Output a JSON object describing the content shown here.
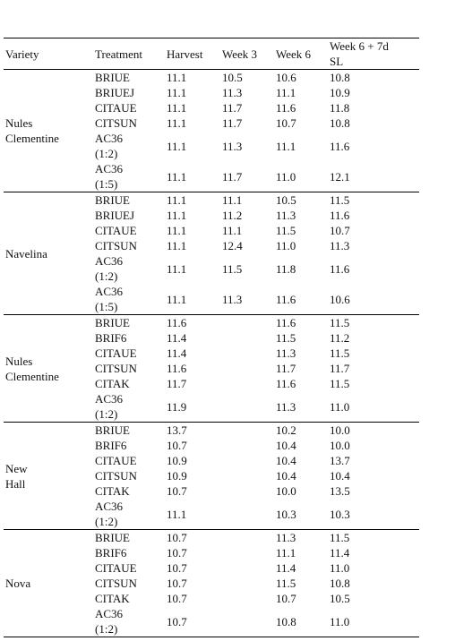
{
  "table": {
    "headers": [
      "Variety",
      "Treatment",
      "Harvest",
      "Week 3",
      "Week 6",
      "Week 6 + 7d SL"
    ],
    "groups": [
      {
        "variety": "Nules Clementine",
        "rows": [
          [
            "BRIUE",
            "11.1",
            "10.5",
            "10.6",
            "10.8"
          ],
          [
            "BRIUEJ",
            "11.1",
            "11.3",
            "11.1",
            "10.9"
          ],
          [
            "CITAUE",
            "11.1",
            "11.7",
            "11.6",
            "11.8"
          ],
          [
            "CITSUN",
            "11.1",
            "11.7",
            "10.7",
            "10.8"
          ],
          [
            "AC36 (1:2)",
            "11.1",
            "11.3",
            "11.1",
            "11.6"
          ],
          [
            "AC36 (1:5)",
            "11.1",
            "11.7",
            "11.0",
            "12.1"
          ]
        ]
      },
      {
        "variety": "Navelina",
        "rows": [
          [
            "BRIUE",
            "11.1",
            "11.1",
            "10.5",
            "11.5"
          ],
          [
            "BRIUEJ",
            "11.1",
            "11.2",
            "11.3",
            "11.6"
          ],
          [
            "CITAUE",
            "11.1",
            "11.1",
            "11.5",
            "10.7"
          ],
          [
            "CITSUN",
            "11.1",
            "12.4",
            "11.0",
            "11.3"
          ],
          [
            "AC36 (1:2)",
            "11.1",
            "11.5",
            "11.8",
            "11.6"
          ],
          [
            "AC36 (1:5)",
            "11.1",
            "11.3",
            "11.6",
            "10.6"
          ]
        ]
      },
      {
        "variety": "Nules Clementine",
        "rows": [
          [
            "BRIUE",
            "11.6",
            null,
            "11.6",
            "11.5"
          ],
          [
            "BRIF6",
            "11.4",
            null,
            "11.5",
            "11.2"
          ],
          [
            "CITAUE",
            "11.4",
            null,
            "11.3",
            "11.5"
          ],
          [
            "CITSUN",
            "11.6",
            null,
            "11.7",
            "11.7"
          ],
          [
            "CITAK",
            "11.7",
            null,
            "11.6",
            "11.5"
          ],
          [
            "AC36 (1:2)",
            "11.9",
            null,
            "11.3",
            "11.0"
          ]
        ]
      },
      {
        "variety": "New Hall",
        "rows": [
          [
            "BRIUE",
            "13.7",
            null,
            "10.2",
            "10.0"
          ],
          [
            "BRIF6",
            "10.7",
            null,
            "10.4",
            "10.0"
          ],
          [
            "CITAUE",
            "10.9",
            null,
            "10.4",
            "13.7"
          ],
          [
            "CITSUN",
            "10.9",
            null,
            "10.4",
            "10.4"
          ],
          [
            "CITAK",
            "10.7",
            null,
            "10.0",
            "13.5"
          ],
          [
            "AC36 (1:2)",
            "11.1",
            null,
            "10.3",
            "10.3"
          ]
        ]
      },
      {
        "variety": "Nova",
        "rows": [
          [
            "BRIUE",
            "10.7",
            null,
            "11.3",
            "11.5"
          ],
          [
            "BRIF6",
            "10.7",
            null,
            "11.1",
            "11.4"
          ],
          [
            "CITAUE",
            "10.7",
            null,
            "11.4",
            "11.0"
          ],
          [
            "CITSUN",
            "10.7",
            null,
            "11.5",
            "10.8"
          ],
          [
            "CITAK",
            "10.7",
            null,
            "10.7",
            "10.5"
          ],
          [
            "AC36 (1:2)",
            "10.7",
            null,
            "10.8",
            "11.0"
          ]
        ]
      }
    ]
  }
}
